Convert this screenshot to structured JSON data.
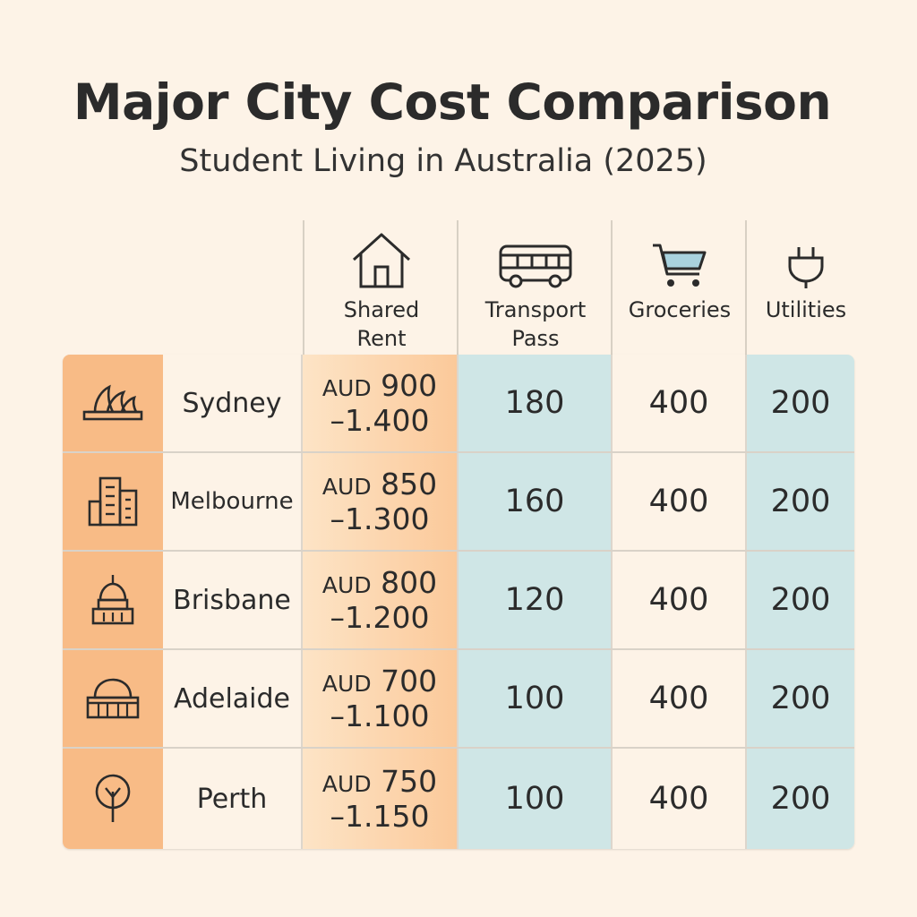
{
  "title": "Major City Cost Comparison",
  "subtitle": "Student Living in Australia (2025)",
  "columns": [
    {
      "label": "Shared\nRent",
      "icon": "house-icon"
    },
    {
      "label": "Transport\nPass",
      "icon": "bus-icon"
    },
    {
      "label": "Groceries",
      "icon": "shopping-cart-icon"
    },
    {
      "label": "Utilities",
      "icon": "plug-icon"
    }
  ],
  "rows": [
    {
      "city": "Sydney",
      "icon": "opera-house-icon",
      "rent_currency": "AUD",
      "rent_low": "900",
      "rent_high": "–1.400",
      "transport": "180",
      "groceries": "400",
      "utilities": "200"
    },
    {
      "city": "Melbourne",
      "icon": "buildings-icon",
      "rent_currency": "AUD",
      "rent_low": "850",
      "rent_high": "–1.300",
      "transport": "160",
      "groceries": "400",
      "utilities": "200"
    },
    {
      "city": "Brisbane",
      "icon": "capitol-dome-icon",
      "rent_currency": "AUD",
      "rent_low": "800",
      "rent_high": "–1.200",
      "transport": "120",
      "groceries": "400",
      "utilities": "200"
    },
    {
      "city": "Adelaide",
      "icon": "dome-building-icon",
      "rent_currency": "AUD",
      "rent_low": "700",
      "rent_high": "–1.100",
      "transport": "100",
      "groceries": "400",
      "utilities": "200"
    },
    {
      "city": "Perth",
      "icon": "tree-icon",
      "rent_currency": "AUD",
      "rent_low": "750",
      "rent_high": "–1.150",
      "transport": "100",
      "groceries": "400",
      "utilities": "200"
    }
  ],
  "colors": {
    "background": "#fdf3e7",
    "icon_column": "#f8bb86",
    "rent_column": "#fbc99a",
    "teal_column": "#cfe6e6",
    "text": "#2b2b2b"
  }
}
